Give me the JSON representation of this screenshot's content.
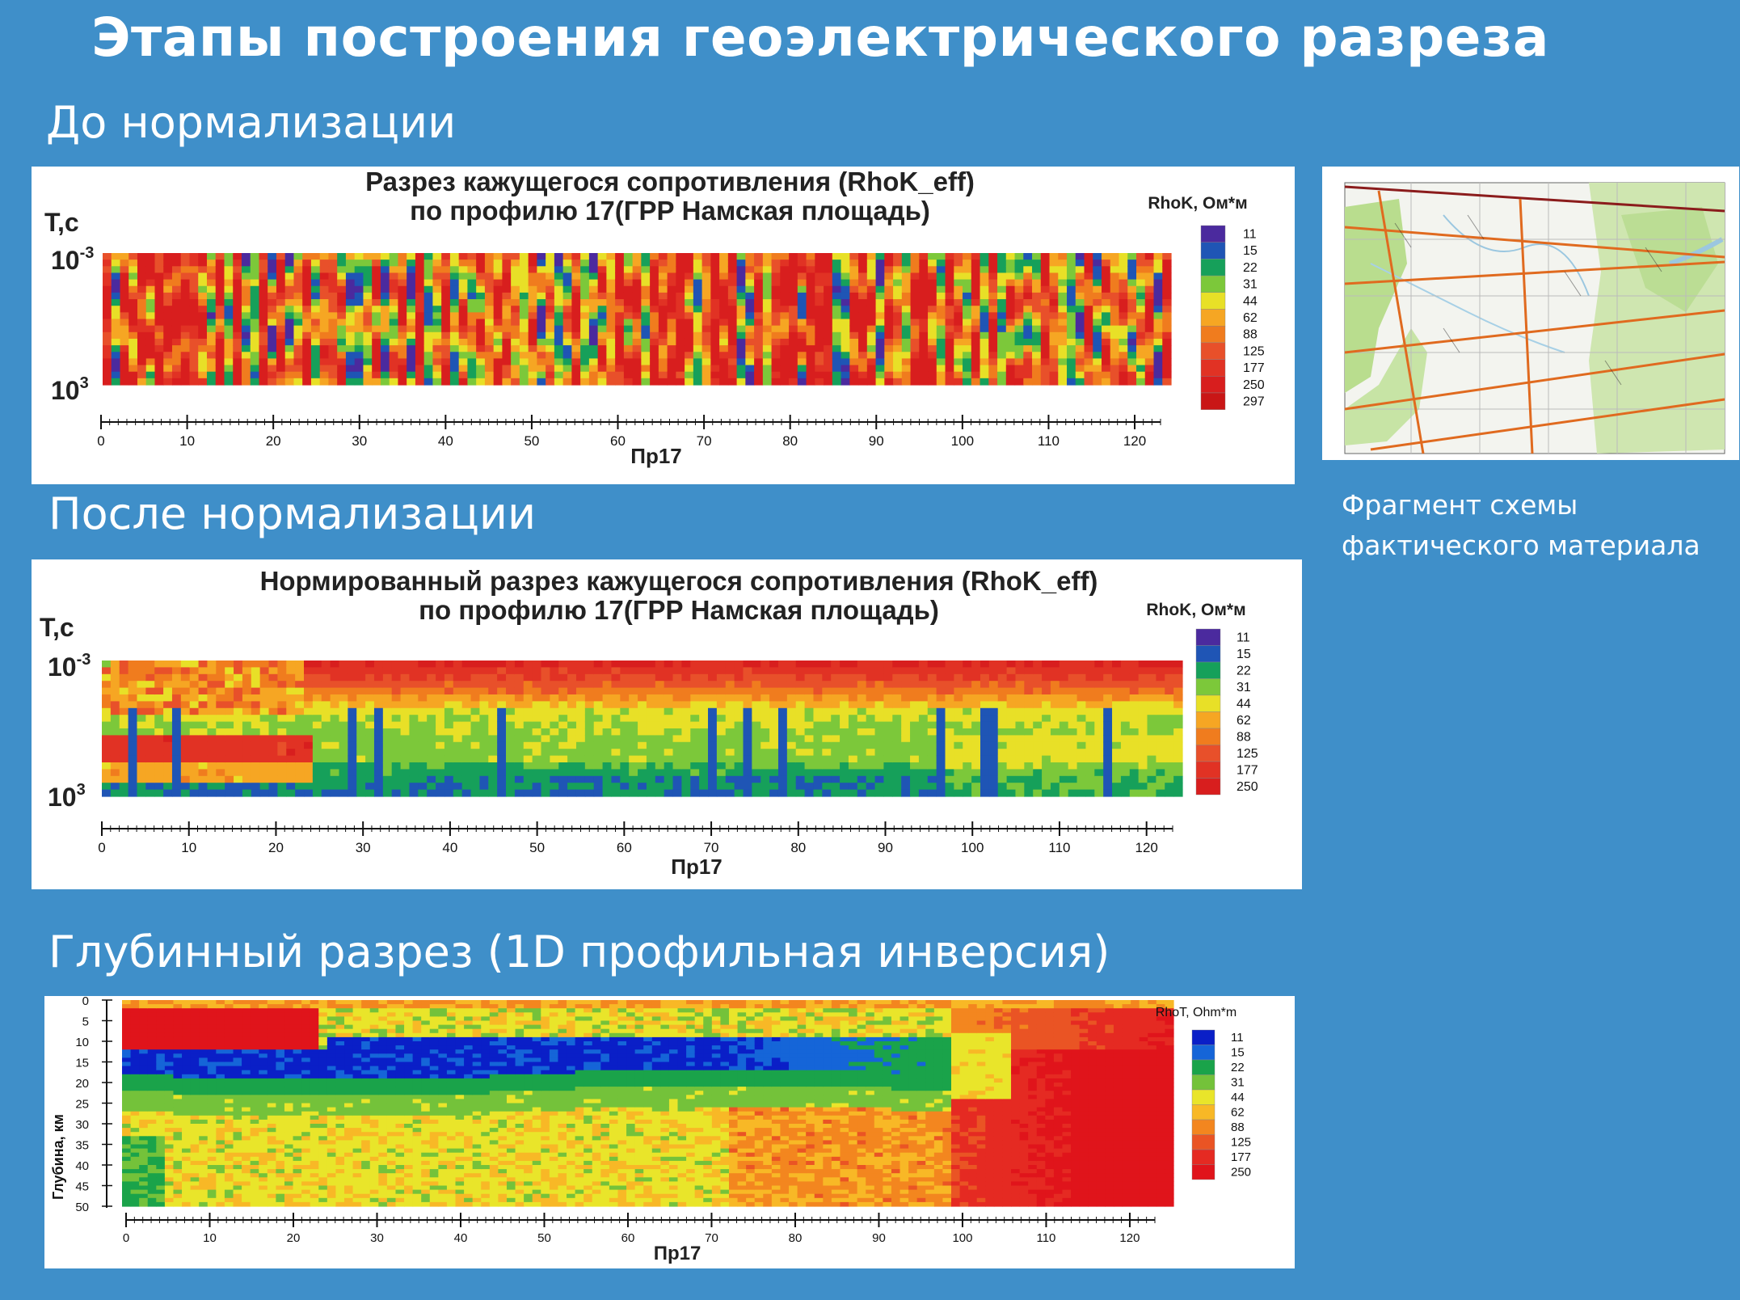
{
  "page": {
    "title": "Этапы построения геоэлектрического разреза",
    "section1_label": "До нормализации",
    "section2_label": "После нормализации",
    "section3_label": "Глубинный разрез (1D профильная инверсия)",
    "map_caption_line1": "Фрагмент схемы",
    "map_caption_line2": "фактического материала"
  },
  "colors": {
    "background": "#3f8fc9",
    "scale": [
      "#4b2a9e",
      "#1f55b5",
      "#16a05a",
      "#7cc83a",
      "#e8e027",
      "#f6a623",
      "#f07c1e",
      "#e8502a",
      "#e13224",
      "#d81e1e",
      "#c91616"
    ]
  },
  "chart_data": [
    {
      "type": "heatmap",
      "title_line1": "Разрез кажущегося сопротивления (RhoK_eff)",
      "title_line2": "по профилю 17(ГРР Намская площадь)",
      "ylabel": "T,c",
      "y_top_label": "10",
      "y_top_exp": "-3",
      "y_bottom_label": "10",
      "y_bottom_exp": "3",
      "xlabel": "Пр17",
      "xlim": [
        0,
        123
      ],
      "x_ticks": [
        "0",
        "10",
        "20",
        "30",
        "40",
        "50",
        "60",
        "70",
        "80",
        "90",
        "100",
        "110",
        "120"
      ],
      "legend_title": "RhoK, Ом*м",
      "legend_values": [
        "11",
        "15",
        "22",
        "31",
        "44",
        "62",
        "88",
        "125",
        "177",
        "250",
        "297"
      ],
      "legend_colors": [
        "#4b2a9e",
        "#1f55b5",
        "#16a05a",
        "#7cc83a",
        "#e8e027",
        "#f6a623",
        "#f07c1e",
        "#e8502a",
        "#e13224",
        "#d81e1e",
        "#c91616"
      ],
      "pattern": "strongly varying vertical columns (not normalized)"
    },
    {
      "type": "heatmap",
      "title_line1": "Нормированный разрез кажущегося сопротивления (RhoK_eff)",
      "title_line2": "по профилю 17(ГРР Намская площадь)",
      "ylabel": "T,c",
      "y_top_label": "10",
      "y_top_exp": "-3",
      "y_bottom_label": "10",
      "y_bottom_exp": "3",
      "xlabel": "Пр17",
      "xlim": [
        0,
        123
      ],
      "x_ticks": [
        "0",
        "10",
        "20",
        "30",
        "40",
        "50",
        "60",
        "70",
        "80",
        "90",
        "100",
        "110",
        "120"
      ],
      "legend_title": "RhoK, Ом*м",
      "legend_values": [
        "11",
        "15",
        "22",
        "31",
        "44",
        "62",
        "88",
        "125",
        "177",
        "250"
      ],
      "legend_colors": [
        "#4b2a9e",
        "#1f55b5",
        "#16a05a",
        "#7cc83a",
        "#e8e027",
        "#f6a623",
        "#f07c1e",
        "#e8502a",
        "#e13224",
        "#d81e1e"
      ],
      "pattern": "horizontal layers: red top, yellow/green middle, green/blue bottom"
    },
    {
      "type": "heatmap",
      "ylabel": "Глубина, км",
      "ylim": [
        0,
        50
      ],
      "y_ticks": [
        "0",
        "5",
        "10",
        "15",
        "20",
        "25",
        "30",
        "35",
        "40",
        "45",
        "50"
      ],
      "xlabel": "Пр17",
      "xlim": [
        0,
        123
      ],
      "x_ticks": [
        "0",
        "10",
        "20",
        "30",
        "40",
        "50",
        "60",
        "70",
        "80",
        "90",
        "100",
        "110",
        "120"
      ],
      "legend_title": "RhoT, Ohm*m",
      "legend_values": [
        "11",
        "15",
        "22",
        "31",
        "44",
        "62",
        "88",
        "125",
        "177",
        "250"
      ],
      "legend_colors": [
        "#0a1fc7",
        "#1565d8",
        "#1aa34a",
        "#74c23a",
        "#e9e52a",
        "#f8b826",
        "#f3861f",
        "#ea5424",
        "#e52a22",
        "#e0141b"
      ],
      "pattern": "red shallow layer on left, blue conductor at 12-18 km from 0 to 97, red resistive body on right, yellow/orange below"
    }
  ]
}
